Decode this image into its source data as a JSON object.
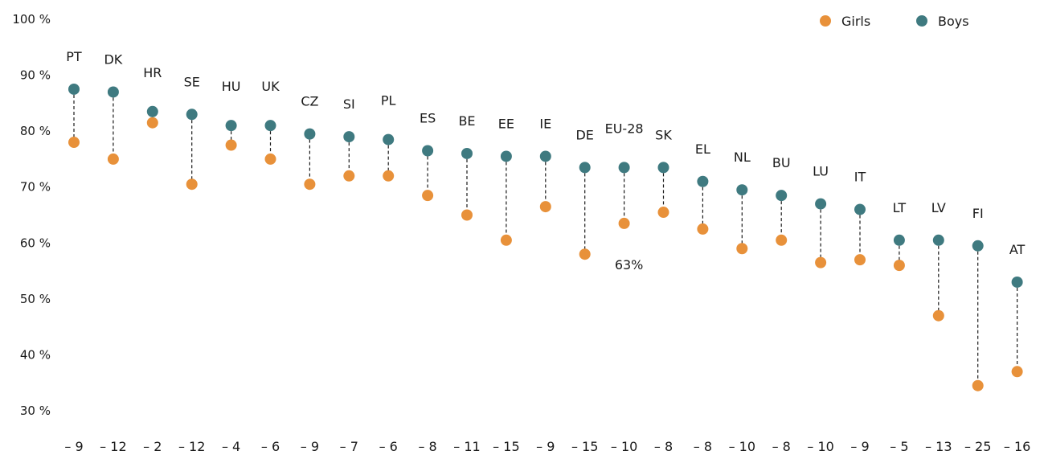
{
  "chart_data": {
    "type": "dumbbell",
    "title": "",
    "xlabel": "",
    "ylabel": "",
    "ylim": [
      30,
      100
    ],
    "yticks": [
      "100 %",
      "90 %",
      "80 %",
      "70 %",
      "60 %",
      "50 %",
      "40 %",
      "30 %"
    ],
    "ytick_values": [
      100,
      90,
      80,
      70,
      60,
      50,
      40,
      30
    ],
    "legend_position": "top-right",
    "colors": {
      "girls": "#E8913A",
      "boys": "#3F7A80",
      "connector": "#1a1a1a"
    },
    "series": [
      {
        "name": "Girls",
        "key": "girls"
      },
      {
        "name": "Boys",
        "key": "boys"
      }
    ],
    "categories": [
      "PT",
      "DK",
      "HR",
      "SE",
      "HU",
      "UK",
      "CZ",
      "SI",
      "PL",
      "ES",
      "BE",
      "EE",
      "IE",
      "DE",
      "EU-28",
      "SK",
      "EL",
      "NL",
      "BU",
      "LU",
      "IT",
      "LT",
      "LV",
      "FI",
      "AT"
    ],
    "boys": [
      87.5,
      87,
      83.5,
      83,
      81,
      81,
      79.5,
      79,
      78.5,
      76.5,
      76,
      75.5,
      75.5,
      73.5,
      73.5,
      73.5,
      71,
      69.5,
      68.5,
      67,
      66,
      60.5,
      60.5,
      59.5,
      53
    ],
    "girls": [
      78,
      75,
      81.5,
      70.5,
      77.5,
      75,
      70.5,
      72,
      72,
      68.5,
      65,
      60.5,
      66.5,
      58,
      63.5,
      65.5,
      62.5,
      59,
      60.5,
      56.5,
      57,
      56,
      47,
      34.5,
      37
    ],
    "differences": [
      "– 9",
      "– 12",
      "– 2",
      "– 12",
      "– 4",
      "– 6",
      "– 9",
      "– 7",
      "– 6",
      "– 8",
      "– 11",
      "– 15",
      "– 9",
      "– 15",
      "– 10",
      "– 8",
      "– 8",
      "– 10",
      "– 8",
      "– 10",
      "– 9",
      "– 5",
      "– 13",
      "– 25",
      "– 16"
    ],
    "annotations": [
      {
        "category": "EU-28",
        "text": "63%"
      }
    ]
  }
}
